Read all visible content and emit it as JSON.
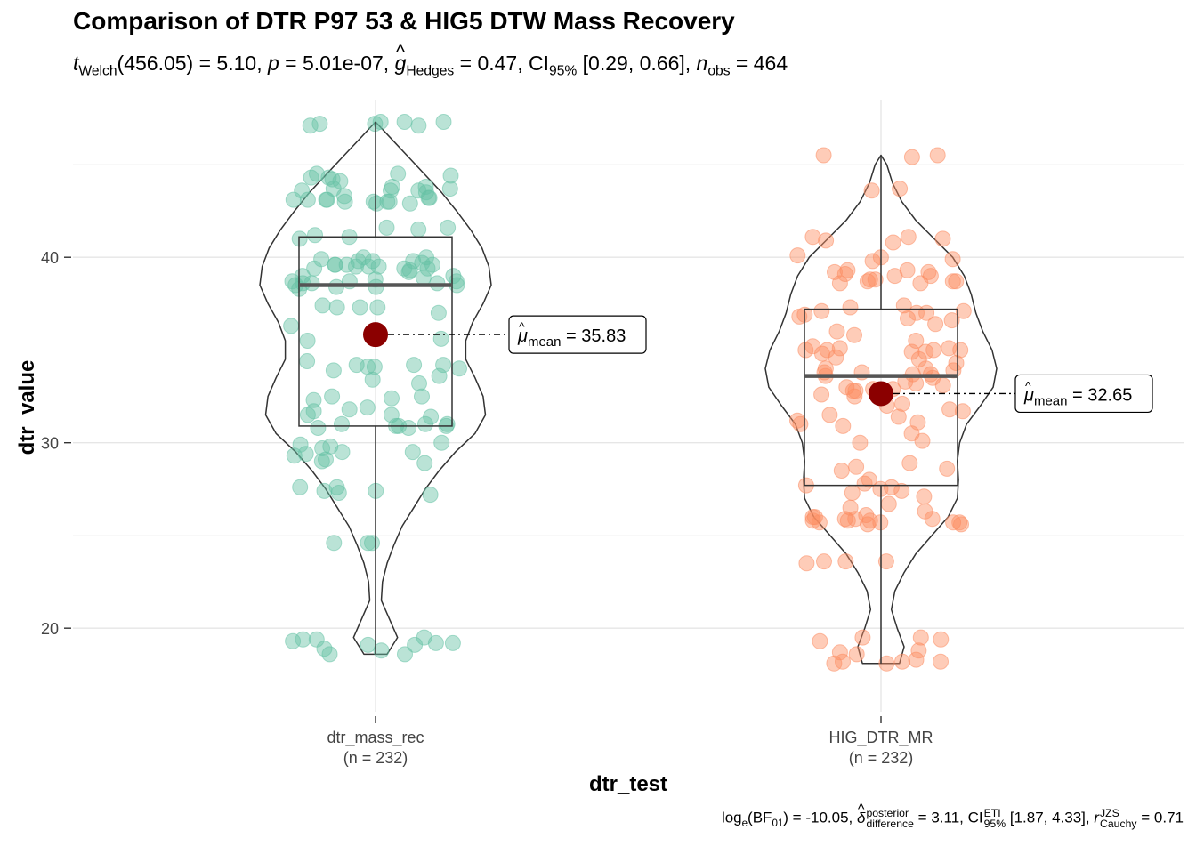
{
  "header": {
    "title": "Comparison of DTR P97 53 & HIG5 DTW Mass Recovery",
    "stat_t_sub": "Welch",
    "stat_df": "(456.05)",
    "stat_t": "5.10",
    "stat_p": "5.01e-07",
    "stat_g_sub": "Hedges",
    "stat_g": "0.47",
    "stat_ci_sub": "95%",
    "stat_ci": "[0.29, 0.66]",
    "stat_n_sub": "obs",
    "stat_n": "464"
  },
  "footer": {
    "bf_label": "log",
    "bf_sub": "e",
    "bf_inner": "(BF",
    "bf_inner_sub": "01",
    "bf_value": "-10.05",
    "delta_sup": "posterior",
    "delta_sub": "difference",
    "delta_value": "3.11",
    "ci_sup": "ETI",
    "ci_sub": "95%",
    "ci_value": "[1.87, 4.33]",
    "r_sup": "JZS",
    "r_sub": "Cauchy",
    "r_value": "0.71"
  },
  "chart_data": {
    "type": "violin-box-scatter",
    "title": "Comparison of DTR P97 53 & HIG5 DTW Mass Recovery",
    "xlabel": "dtr_test",
    "ylabel": "dtr_value",
    "ylim": [
      15.5,
      48.5
    ],
    "yticks": [
      20,
      30,
      40
    ],
    "grid": true,
    "groups": [
      {
        "category": "dtr_mass_rec",
        "n_label": "(n = 232)",
        "color": "#66C2A5",
        "box": {
          "whisker_low": 18.6,
          "q1": 30.9,
          "median": 38.5,
          "q3": 41.1,
          "whisker_high": 47.3
        },
        "mean": 35.83,
        "mean_label": "35.83",
        "violin": [
          [
            18.6,
            0.1
          ],
          [
            19.5,
            0.19
          ],
          [
            20.5,
            0.12
          ],
          [
            21.5,
            0.05
          ],
          [
            22.5,
            0.06
          ],
          [
            23.5,
            0.1
          ],
          [
            24.5,
            0.16
          ],
          [
            25.5,
            0.23
          ],
          [
            26.5,
            0.33
          ],
          [
            27.5,
            0.43
          ],
          [
            28.5,
            0.55
          ],
          [
            29.5,
            0.69
          ],
          [
            30.5,
            0.86
          ],
          [
            31.5,
            0.95
          ],
          [
            32.5,
            0.93
          ],
          [
            33.5,
            0.86
          ],
          [
            34.5,
            0.78
          ],
          [
            35.5,
            0.78
          ],
          [
            36.5,
            0.84
          ],
          [
            37.5,
            0.93
          ],
          [
            38.5,
            1.0
          ],
          [
            39.5,
            0.98
          ],
          [
            40.5,
            0.92
          ],
          [
            41.5,
            0.82
          ],
          [
            42.5,
            0.7
          ],
          [
            43.5,
            0.57
          ],
          [
            44.5,
            0.42
          ],
          [
            45.5,
            0.27
          ],
          [
            46.5,
            0.12
          ],
          [
            47.3,
            0.0
          ]
        ],
        "points": [
          18.6,
          18.6,
          18.8,
          18.9,
          19.1,
          19.1,
          19.2,
          19.2,
          19.3,
          19.4,
          19.4,
          19.5,
          24.6,
          24.6,
          24.6,
          27.2,
          27.3,
          27.4,
          27.4,
          27.6,
          27.6,
          28.9,
          29.0,
          29.1,
          29.3,
          29.4,
          29.5,
          29.5,
          29.7,
          29.8,
          29.9,
          30.0,
          30.8,
          30.8,
          30.9,
          30.9,
          30.9,
          31.0,
          31.0,
          31.0,
          31.4,
          31.5,
          31.5,
          31.7,
          31.8,
          31.9,
          32.3,
          32.4,
          32.5,
          32.5,
          33.2,
          33.4,
          33.6,
          33.9,
          34.0,
          34.1,
          34.1,
          34.2,
          34.2,
          34.2,
          34.4,
          35.5,
          35.6,
          35.7,
          36.3,
          37.0,
          37.3,
          37.3,
          37.3,
          37.4,
          38.3,
          38.4,
          38.4,
          38.5,
          38.5,
          38.6,
          38.6,
          38.6,
          38.7,
          38.7,
          38.7,
          38.8,
          38.9,
          39.0,
          39.0,
          39.2,
          39.3,
          39.4,
          39.4,
          39.4,
          39.5,
          39.5,
          39.5,
          39.6,
          39.6,
          39.6,
          39.6,
          39.7,
          39.8,
          39.8,
          39.8,
          39.9,
          40.0,
          40.0,
          41.0,
          41.1,
          41.2,
          41.5,
          41.6,
          41.6,
          42.9,
          42.9,
          43.0,
          43.0,
          43.0,
          43.0,
          43.1,
          43.1,
          43.1,
          43.1,
          43.2,
          43.2,
          43.3,
          43.5,
          43.6,
          43.6,
          43.6,
          43.7,
          43.7,
          43.8,
          43.8,
          44.1,
          44.2,
          44.3,
          44.3,
          44.4,
          44.5,
          44.5,
          47.1,
          47.1,
          47.2,
          47.2,
          47.3,
          47.3,
          47.3
        ]
      },
      {
        "category": "HIG_DTR_MR",
        "n_label": "(n = 232)",
        "color": "#FC8D62",
        "box": {
          "whisker_low": 18.1,
          "q1": 27.7,
          "median": 33.6,
          "q3": 37.2,
          "whisker_high": 45.5
        },
        "mean": 32.65,
        "mean_label": "32.65",
        "violin": [
          [
            18.1,
            0.16
          ],
          [
            19.0,
            0.2
          ],
          [
            20.0,
            0.14
          ],
          [
            21.0,
            0.09
          ],
          [
            22.0,
            0.12
          ],
          [
            23.0,
            0.2
          ],
          [
            24.0,
            0.3
          ],
          [
            25.0,
            0.44
          ],
          [
            26.0,
            0.58
          ],
          [
            27.0,
            0.66
          ],
          [
            28.0,
            0.67
          ],
          [
            29.0,
            0.66
          ],
          [
            30.0,
            0.68
          ],
          [
            31.0,
            0.74
          ],
          [
            32.0,
            0.86
          ],
          [
            33.0,
            0.97
          ],
          [
            34.0,
            1.0
          ],
          [
            35.0,
            0.96
          ],
          [
            36.0,
            0.88
          ],
          [
            37.0,
            0.82
          ],
          [
            38.0,
            0.78
          ],
          [
            39.0,
            0.72
          ],
          [
            40.0,
            0.62
          ],
          [
            41.0,
            0.46
          ],
          [
            42.0,
            0.3
          ],
          [
            43.0,
            0.18
          ],
          [
            44.0,
            0.1
          ],
          [
            45.0,
            0.05
          ],
          [
            45.5,
            0.0
          ]
        ],
        "points": [
          18.1,
          18.1,
          18.2,
          18.2,
          18.2,
          18.3,
          18.6,
          18.7,
          18.8,
          19.3,
          19.4,
          19.5,
          19.5,
          23.5,
          23.6,
          23.6,
          23.6,
          25.6,
          25.6,
          25.7,
          25.7,
          25.7,
          25.7,
          25.8,
          25.8,
          25.8,
          25.9,
          25.9,
          25.9,
          26.0,
          26.0,
          26.1,
          26.3,
          26.5,
          26.7,
          27.1,
          27.3,
          27.4,
          27.5,
          27.6,
          27.7,
          27.8,
          28.0,
          28.5,
          28.6,
          28.7,
          28.9,
          30.0,
          30.1,
          30.5,
          30.9,
          31.0,
          31.1,
          31.2,
          31.4,
          31.5,
          31.7,
          31.8,
          32.0,
          32.1,
          32.5,
          32.6,
          32.8,
          32.8,
          32.9,
          32.9,
          33.0,
          33.1,
          33.2,
          33.3,
          33.5,
          33.6,
          33.7,
          33.7,
          33.8,
          33.8,
          33.9,
          34.0,
          34.0,
          34.3,
          34.5,
          34.6,
          34.8,
          34.9,
          34.9,
          35.0,
          35.0,
          35.0,
          35.0,
          35.1,
          35.1,
          35.2,
          35.5,
          35.8,
          36.0,
          36.4,
          36.6,
          36.7,
          36.8,
          36.9,
          37.0,
          37.0,
          37.1,
          37.1,
          37.3,
          37.4,
          38.6,
          38.6,
          38.7,
          38.7,
          38.7,
          38.8,
          38.8,
          39.0,
          39.0,
          39.1,
          39.2,
          39.2,
          39.3,
          39.3,
          39.8,
          39.9,
          40.0,
          40.1,
          40.8,
          40.9,
          41.0,
          41.1,
          41.1,
          43.6,
          43.7,
          45.4,
          45.5,
          45.5
        ]
      }
    ]
  }
}
